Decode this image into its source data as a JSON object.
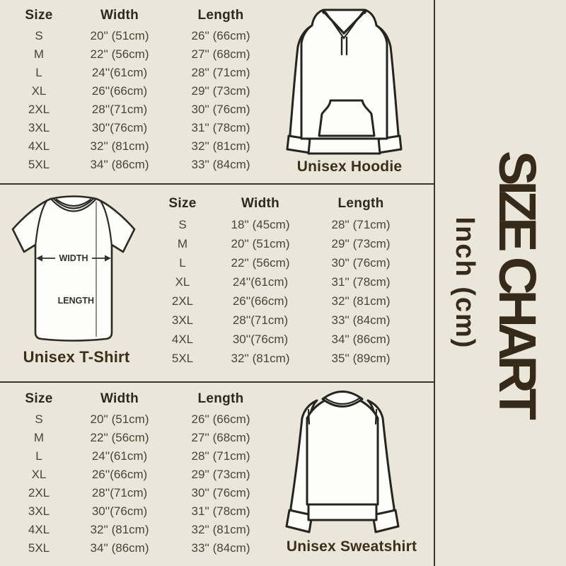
{
  "page": {
    "background": "#ebe6da",
    "divider_color": "#3a372f",
    "sidebar_title": "SIZE CHART",
    "sidebar_subtitle": "Inch (cm)"
  },
  "hoodie": {
    "label": "Unisex Hoodie",
    "table": {
      "headers": [
        "Size",
        "Width",
        "Length"
      ],
      "rows": [
        [
          "S",
          "20'' (51cm)",
          "26'' (66cm)"
        ],
        [
          "M",
          "22'' (56cm)",
          "27'' (68cm)"
        ],
        [
          "L",
          "24''(61cm)",
          "28'' (71cm)"
        ],
        [
          "XL",
          "26''(66cm)",
          "29'' (73cm)"
        ],
        [
          "2XL",
          "28''(71cm)",
          "30'' (76cm)"
        ],
        [
          "3XL",
          "30''(76cm)",
          "31'' (78cm)"
        ],
        [
          "4XL",
          "32'' (81cm)",
          "32'' (81cm)"
        ],
        [
          "5XL",
          "34'' (86cm)",
          "33'' (84cm)"
        ]
      ]
    }
  },
  "tshirt": {
    "label": "Unisex T-Shirt",
    "diagram": {
      "width_label": "WIDTH",
      "length_label": "LENGTH"
    },
    "table": {
      "headers": [
        "Size",
        "Width",
        "Length"
      ],
      "rows": [
        [
          "S",
          "18'' (45cm)",
          "28'' (71cm)"
        ],
        [
          "M",
          "20'' (51cm)",
          "29'' (73cm)"
        ],
        [
          "L",
          "22'' (56cm)",
          "30'' (76cm)"
        ],
        [
          "XL",
          "24''(61cm)",
          "31'' (78cm)"
        ],
        [
          "2XL",
          "26''(66cm)",
          "32'' (81cm)"
        ],
        [
          "3XL",
          "28''(71cm)",
          "33'' (84cm)"
        ],
        [
          "4XL",
          "30''(76cm)",
          "34'' (86cm)"
        ],
        [
          "5XL",
          "32'' (81cm)",
          "35'' (89cm)"
        ]
      ]
    }
  },
  "sweatshirt": {
    "label": "Unisex Sweatshirt",
    "table": {
      "headers": [
        "Size",
        "Width",
        "Length"
      ],
      "rows": [
        [
          "S",
          "20'' (51cm)",
          "26'' (66cm)"
        ],
        [
          "M",
          "22'' (56cm)",
          "27'' (68cm)"
        ],
        [
          "L",
          "24''(61cm)",
          "28'' (71cm)"
        ],
        [
          "XL",
          "26''(66cm)",
          "29'' (73cm)"
        ],
        [
          "2XL",
          "28''(71cm)",
          "30'' (76cm)"
        ],
        [
          "3XL",
          "30''(76cm)",
          "31'' (78cm)"
        ],
        [
          "4XL",
          "32'' (81cm)",
          "32'' (81cm)"
        ],
        [
          "5XL",
          "34'' (86cm)",
          "33'' (84cm)"
        ]
      ]
    }
  }
}
